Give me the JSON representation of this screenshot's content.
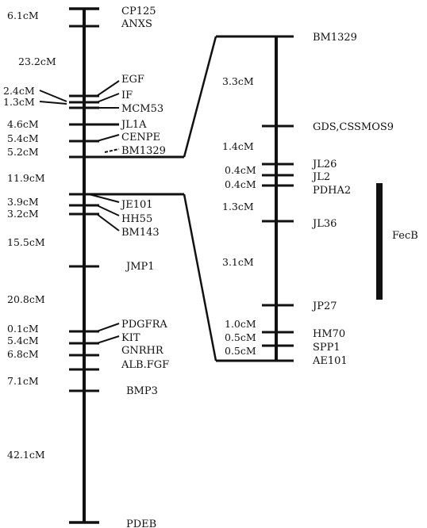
{
  "main_chromosome": {
    "markers": [
      {
        "name": "CP125"
      },
      {
        "name": "ANXS"
      },
      {
        "name": "EGF"
      },
      {
        "name": "IF"
      },
      {
        "name": "MCM53"
      },
      {
        "name": "JL1A"
      },
      {
        "name": "CENPE"
      },
      {
        "name": "BM1329"
      },
      {
        "name": "JE101"
      },
      {
        "name": "HH55"
      },
      {
        "name": "BM143"
      },
      {
        "name": "JMP1"
      },
      {
        "name": "PDGFRA"
      },
      {
        "name": "KIT"
      },
      {
        "name": "GNRHR"
      },
      {
        "name": "ALB.FGF"
      },
      {
        "name": "BMP3"
      },
      {
        "name": "PDEB"
      }
    ],
    "distances": [
      {
        "label": "6.1cM"
      },
      {
        "label": "23.2cM"
      },
      {
        "label": "2.4cM"
      },
      {
        "label": "1.3cM"
      },
      {
        "label": "4.6cM"
      },
      {
        "label": "5.4cM"
      },
      {
        "label": "5.2cM"
      },
      {
        "label": "11.9cM"
      },
      {
        "label": "3.9cM"
      },
      {
        "label": "3.2cM"
      },
      {
        "label": "15.5cM"
      },
      {
        "label": "20.8cM"
      },
      {
        "label": "0.1cM"
      },
      {
        "label": "5.4cM"
      },
      {
        "label": "6.8cM"
      },
      {
        "label": "7.1cM"
      },
      {
        "label": "42.1cM"
      }
    ]
  },
  "expanded_region": {
    "markers": [
      {
        "name": "BM1329"
      },
      {
        "name": "GDS,CSSMOS9"
      },
      {
        "name": "JL26"
      },
      {
        "name": "JL2"
      },
      {
        "name": "PDHA2"
      },
      {
        "name": "JL36"
      },
      {
        "name": "JP27"
      },
      {
        "name": "HM70"
      },
      {
        "name": "SPP1"
      },
      {
        "name": "AE101"
      }
    ],
    "distances": [
      {
        "label": "3.3cM"
      },
      {
        "label": "1.4cM"
      },
      {
        "label": "0.4cM"
      },
      {
        "label": "0.4cM"
      },
      {
        "label": "1.3cM"
      },
      {
        "label": "3.1cM"
      },
      {
        "label": "1.0cM"
      },
      {
        "label": "0.5cM"
      },
      {
        "label": "0.5cM"
      }
    ]
  },
  "locus": {
    "label": "FecB"
  }
}
